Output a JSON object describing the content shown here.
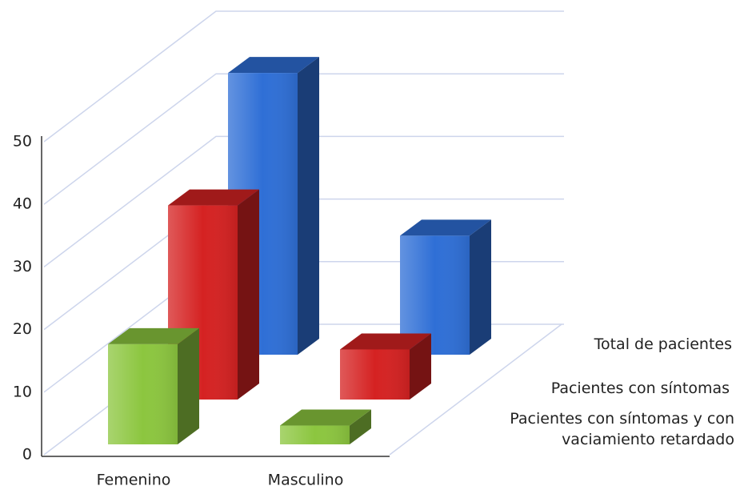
{
  "chart_data": {
    "type": "bar3d",
    "categories": [
      "Femenino",
      "Masculino"
    ],
    "series": [
      {
        "name": "Total de pacientes",
        "color": "#2f6fd6",
        "values": [
          45,
          19
        ]
      },
      {
        "name": "Pacientes con síntomas",
        "color": "#d52222",
        "values": [
          31,
          8
        ]
      },
      {
        "name": "Pacientes con síntomas y con vaciamiento retardado",
        "color": "#8cc63f",
        "values": [
          16,
          3
        ]
      }
    ],
    "ylim": [
      0,
      50
    ],
    "yticks": [
      0,
      10,
      20,
      30,
      40,
      50
    ],
    "grid": true
  }
}
